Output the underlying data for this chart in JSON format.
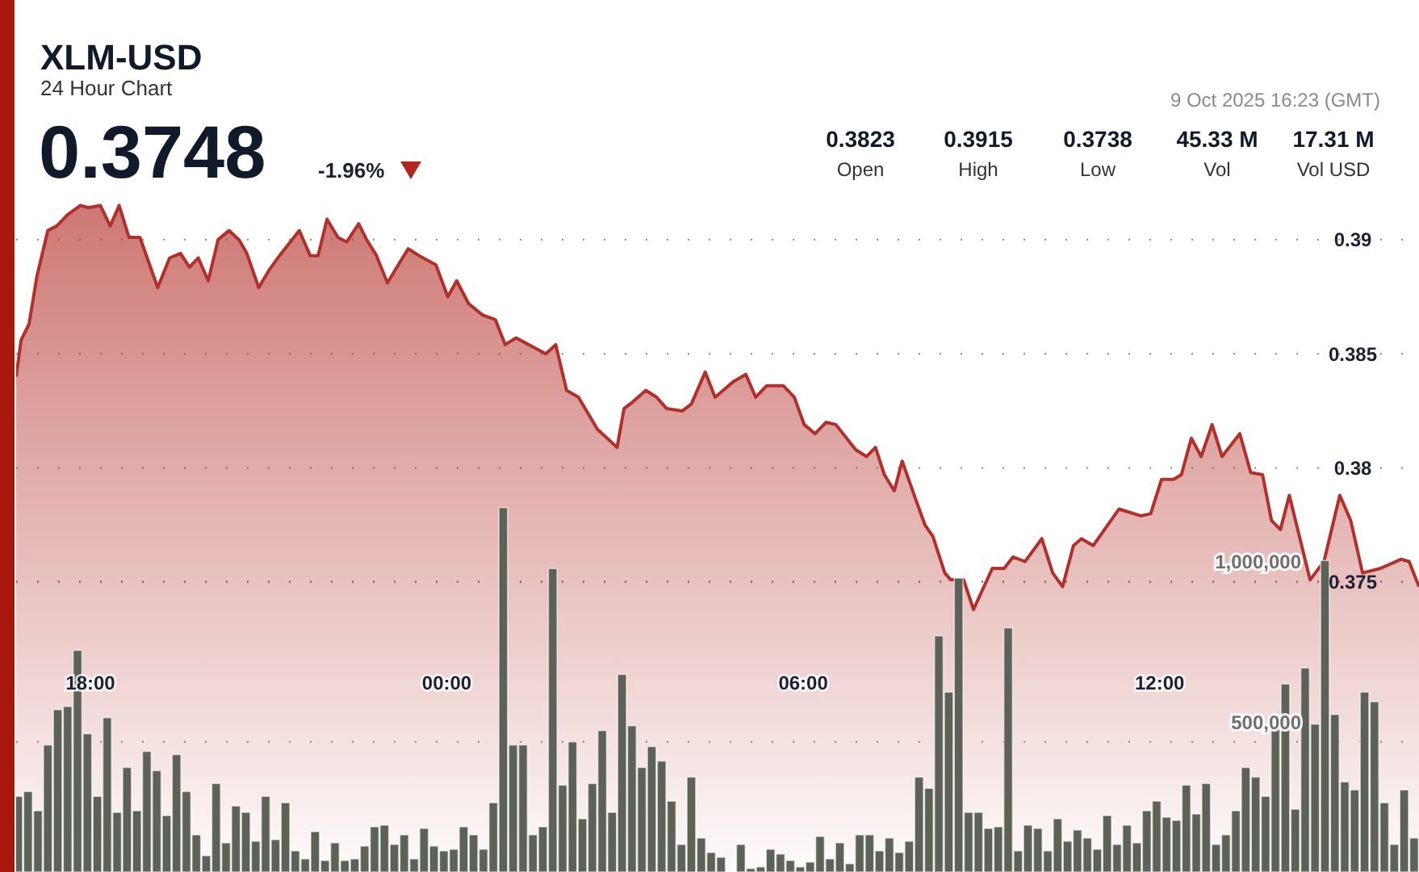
{
  "chart_data": {
    "type": "area",
    "title": "XLM-USD",
    "subtitle": "24 Hour Chart",
    "annotations": [
      "0.3748",
      "-1.96%",
      "9 Oct 2025 16:23 (GMT)",
      "0.3823",
      "Open",
      "0.3915",
      "High",
      "0.3738",
      "Low",
      "45.33 M",
      "Vol",
      "17.31 M",
      "Vol USD"
    ],
    "xlim": [
      "2025-10-08T16:45",
      "2025-10-09T16:22"
    ],
    "xticks": [
      {
        "value": "2025-10-08T18:00",
        "label": "18:00"
      },
      {
        "value": "2025-10-09T00:00",
        "label": "00:00"
      },
      {
        "value": "2025-10-09T06:00",
        "label": "06:00"
      },
      {
        "value": "2025-10-09T12:00",
        "label": "12:00"
      }
    ],
    "ylim": [
      0.3623,
      0.4005
    ],
    "yticks": [
      0.375,
      0.38,
      0.385,
      0.39
    ],
    "y2lim": [
      94000,
      2812000
    ],
    "y2ticks": [
      {
        "value": 500000,
        "label": "500,000"
      },
      {
        "value": 1000000,
        "label": "1,000,000"
      }
    ],
    "grid": "y",
    "series": [
      {
        "color": "#b3302a",
        "x": [
          "2025-10-08T16:45",
          "2025-10-08T16:50",
          "2025-10-08T16:58",
          "2025-10-08T17:06",
          "2025-10-08T17:17",
          "2025-10-08T17:26",
          "2025-10-08T17:37",
          "2025-10-08T17:50",
          "2025-10-08T17:58",
          "2025-10-08T18:10",
          "2025-10-08T18:20",
          "2025-10-08T18:29",
          "2025-10-08T18:39",
          "2025-10-08T18:50",
          "2025-10-08T19:08",
          "2025-10-08T19:20",
          "2025-10-08T19:31",
          "2025-10-08T19:40",
          "2025-10-08T19:49",
          "2025-10-08T19:59",
          "2025-10-08T20:09",
          "2025-10-08T20:20",
          "2025-10-08T20:30",
          "2025-10-08T20:38",
          "2025-10-08T20:50",
          "2025-10-08T21:01",
          "2025-10-08T21:11",
          "2025-10-08T21:31",
          "2025-10-08T21:42",
          "2025-10-08T21:50",
          "2025-10-08T21:59",
          "2025-10-08T22:10",
          "2025-10-08T22:19",
          "2025-10-08T22:31",
          "2025-10-08T22:39",
          "2025-10-08T22:49",
          "2025-10-08T23:00",
          "2025-10-08T23:11",
          "2025-10-08T23:21",
          "2025-10-08T23:32",
          "2025-10-08T23:49",
          "2025-10-09T00:01",
          "2025-10-09T00:10",
          "2025-10-09T00:22",
          "2025-10-09T00:36",
          "2025-10-09T00:49",
          "2025-10-09T00:59",
          "2025-10-09T01:10",
          "2025-10-09T01:40",
          "2025-10-09T01:50",
          "2025-10-09T02:01",
          "2025-10-09T02:13",
          "2025-10-09T02:32",
          "2025-10-09T02:52",
          "2025-10-09T02:59",
          "2025-10-09T03:08",
          "2025-10-09T03:21",
          "2025-10-09T03:32",
          "2025-10-09T03:42",
          "2025-10-09T03:58",
          "2025-10-09T04:07",
          "2025-10-09T04:21",
          "2025-10-09T04:31",
          "2025-10-09T04:50",
          "2025-10-09T05:02",
          "2025-10-09T05:12",
          "2025-10-09T05:23",
          "2025-10-09T05:40",
          "2025-10-09T05:51",
          "2025-10-09T06:01",
          "2025-10-09T06:12",
          "2025-10-09T06:23",
          "2025-10-09T06:33",
          "2025-10-09T06:53",
          "2025-10-09T07:04",
          "2025-10-09T07:13",
          "2025-10-09T07:22",
          "2025-10-09T07:32",
          "2025-10-09T07:40",
          "2025-10-09T07:53",
          "2025-10-09T08:03",
          "2025-10-09T08:11",
          "2025-10-09T08:23",
          "2025-10-09T08:29",
          "2025-10-09T08:42",
          "2025-10-09T08:52",
          "2025-10-09T09:11",
          "2025-10-09T09:23",
          "2025-10-09T09:32",
          "2025-10-09T09:44",
          "2025-10-09T10:01",
          "2025-10-09T10:12",
          "2025-10-09T10:22",
          "2025-10-09T10:33",
          "2025-10-09T10:41",
          "2025-10-09T10:53",
          "2025-10-09T11:19",
          "2025-10-09T11:41",
          "2025-10-09T11:51",
          "2025-10-09T12:02",
          "2025-10-09T12:14",
          "2025-10-09T12:22",
          "2025-10-09T12:32",
          "2025-10-09T12:42",
          "2025-10-09T12:53",
          "2025-10-09T13:03",
          "2025-10-09T13:21",
          "2025-10-09T13:32",
          "2025-10-09T13:44",
          "2025-10-09T13:53",
          "2025-10-09T14:02",
          "2025-10-09T14:11",
          "2025-10-09T14:32",
          "2025-10-09T14:46",
          "2025-10-09T15:02",
          "2025-10-09T15:13",
          "2025-10-09T15:25",
          "2025-10-09T15:43",
          "2025-10-09T16:04",
          "2025-10-09T16:12",
          "2025-10-09T16:22"
        ],
        "values": [
          0.384,
          0.3856,
          0.3863,
          0.3884,
          0.3904,
          0.3906,
          0.3911,
          0.3915,
          0.3914,
          0.3915,
          0.3906,
          0.3915,
          0.3901,
          0.3901,
          0.3879,
          0.3892,
          0.3894,
          0.3888,
          0.3892,
          0.3882,
          0.39,
          0.3904,
          0.39,
          0.3894,
          0.3879,
          0.3887,
          0.3893,
          0.3904,
          0.3893,
          0.3893,
          0.3909,
          0.3901,
          0.3899,
          0.3907,
          0.39,
          0.3893,
          0.3881,
          0.3889,
          0.3896,
          0.3893,
          0.3889,
          0.3875,
          0.3882,
          0.3872,
          0.3867,
          0.3865,
          0.3854,
          0.3857,
          0.385,
          0.3854,
          0.3834,
          0.3831,
          0.3817,
          0.3809,
          0.3826,
          0.3829,
          0.3834,
          0.3831,
          0.3826,
          0.3825,
          0.3828,
          0.3842,
          0.3831,
          0.3838,
          0.3841,
          0.3831,
          0.3836,
          0.3836,
          0.3831,
          0.3819,
          0.3815,
          0.382,
          0.3819,
          0.3808,
          0.3805,
          0.3809,
          0.3797,
          0.379,
          0.3803,
          0.3787,
          0.3775,
          0.377,
          0.3754,
          0.3751,
          0.3751,
          0.3738,
          0.3756,
          0.3756,
          0.3761,
          0.3759,
          0.3769,
          0.3754,
          0.3748,
          0.3766,
          0.3769,
          0.3766,
          0.3782,
          0.3779,
          0.378,
          0.3795,
          0.3795,
          0.3797,
          0.3813,
          0.3805,
          0.3819,
          0.3805,
          0.3815,
          0.3798,
          0.3797,
          0.3777,
          0.3773,
          0.3788,
          0.3751,
          0.3759,
          0.3788,
          0.3777,
          0.3754,
          0.3756,
          0.376,
          0.3759,
          0.3748
        ]
      },
      {
        "type": "bar",
        "axis": "y2",
        "color": "#5d6259",
        "x": [
          "2025-10-08T16:47",
          "2025-10-08T16:57",
          "2025-10-08T17:07",
          "2025-10-08T17:17",
          "2025-10-08T17:27",
          "2025-10-08T17:37",
          "2025-10-08T17:47",
          "2025-10-08T17:57",
          "2025-10-08T18:07",
          "2025-10-08T18:17",
          "2025-10-08T18:27",
          "2025-10-08T18:37",
          "2025-10-08T18:47",
          "2025-10-08T18:57",
          "2025-10-08T19:07",
          "2025-10-08T19:17",
          "2025-10-08T19:27",
          "2025-10-08T19:37",
          "2025-10-08T19:47",
          "2025-10-08T19:57",
          "2025-10-08T20:07",
          "2025-10-08T20:17",
          "2025-10-08T20:27",
          "2025-10-08T20:37",
          "2025-10-08T20:47",
          "2025-10-08T20:57",
          "2025-10-08T21:07",
          "2025-10-08T21:17",
          "2025-10-08T21:27",
          "2025-10-08T21:37",
          "2025-10-08T21:47",
          "2025-10-08T21:57",
          "2025-10-08T22:07",
          "2025-10-08T22:17",
          "2025-10-08T22:27",
          "2025-10-08T22:37",
          "2025-10-08T22:47",
          "2025-10-08T22:57",
          "2025-10-08T23:07",
          "2025-10-08T23:17",
          "2025-10-08T23:27",
          "2025-10-08T23:37",
          "2025-10-08T23:47",
          "2025-10-08T23:57",
          "2025-10-09T00:07",
          "2025-10-09T00:17",
          "2025-10-09T00:27",
          "2025-10-09T00:37",
          "2025-10-09T00:47",
          "2025-10-09T00:57",
          "2025-10-09T01:07",
          "2025-10-09T01:17",
          "2025-10-09T01:27",
          "2025-10-09T01:37",
          "2025-10-09T01:47",
          "2025-10-09T01:57",
          "2025-10-09T02:07",
          "2025-10-09T02:17",
          "2025-10-09T02:27",
          "2025-10-09T02:37",
          "2025-10-09T02:47",
          "2025-10-09T02:57",
          "2025-10-09T03:07",
          "2025-10-09T03:17",
          "2025-10-09T03:27",
          "2025-10-09T03:37",
          "2025-10-09T03:47",
          "2025-10-09T03:57",
          "2025-10-09T04:07",
          "2025-10-09T04:17",
          "2025-10-09T04:27",
          "2025-10-09T04:37",
          "2025-10-09T04:57",
          "2025-10-09T05:07",
          "2025-10-09T05:17",
          "2025-10-09T05:27",
          "2025-10-09T05:37",
          "2025-10-09T05:47",
          "2025-10-09T05:57",
          "2025-10-09T06:07",
          "2025-10-09T06:17",
          "2025-10-09T06:27",
          "2025-10-09T06:37",
          "2025-10-09T06:47",
          "2025-10-09T06:57",
          "2025-10-09T07:07",
          "2025-10-09T07:17",
          "2025-10-09T07:27",
          "2025-10-09T07:37",
          "2025-10-09T07:47",
          "2025-10-09T07:57",
          "2025-10-09T08:07",
          "2025-10-09T08:17",
          "2025-10-09T08:27",
          "2025-10-09T08:37",
          "2025-10-09T08:47",
          "2025-10-09T08:57",
          "2025-10-09T09:07",
          "2025-10-09T09:17",
          "2025-10-09T09:27",
          "2025-10-09T09:37",
          "2025-10-09T09:47",
          "2025-10-09T09:57",
          "2025-10-09T10:07",
          "2025-10-09T10:17",
          "2025-10-09T10:27",
          "2025-10-09T10:37",
          "2025-10-09T10:47",
          "2025-10-09T10:57",
          "2025-10-09T11:07",
          "2025-10-09T11:17",
          "2025-10-09T11:27",
          "2025-10-09T11:37",
          "2025-10-09T11:47",
          "2025-10-09T11:57",
          "2025-10-09T12:07",
          "2025-10-09T12:17",
          "2025-10-09T12:27",
          "2025-10-09T12:37",
          "2025-10-09T12:47",
          "2025-10-09T12:57",
          "2025-10-09T13:07",
          "2025-10-09T13:17",
          "2025-10-09T13:27",
          "2025-10-09T13:37",
          "2025-10-09T13:47",
          "2025-10-09T13:57",
          "2025-10-09T14:07",
          "2025-10-09T14:17",
          "2025-10-09T14:27",
          "2025-10-09T14:37",
          "2025-10-09T14:47",
          "2025-10-09T14:57",
          "2025-10-09T15:07",
          "2025-10-09T15:17",
          "2025-10-09T15:27",
          "2025-10-09T15:37",
          "2025-10-09T15:47",
          "2025-10-09T15:57",
          "2025-10-09T16:07",
          "2025-10-09T16:17"
        ],
        "values": [
          330000,
          345000,
          285000,
          490000,
          600000,
          610000,
          785000,
          525000,
          330000,
          575000,
          280000,
          420000,
          285000,
          470000,
          410000,
          270000,
          460000,
          345000,
          210000,
          145000,
          370000,
          185000,
          300000,
          280000,
          190000,
          330000,
          195000,
          310000,
          160000,
          135000,
          220000,
          130000,
          185000,
          130000,
          135000,
          175000,
          235000,
          240000,
          180000,
          210000,
          135000,
          230000,
          175000,
          160000,
          165000,
          235000,
          210000,
          165000,
          310000,
          1230000,
          490000,
          490000,
          210000,
          235000,
          1040000,
          365000,
          500000,
          260000,
          370000,
          535000,
          280000,
          710000,
          550000,
          420000,
          485000,
          440000,
          315000,
          180000,
          390000,
          200000,
          155000,
          140000,
          180000,
          105000,
          110000,
          165000,
          150000,
          130000,
          110000,
          125000,
          205000,
          135000,
          185000,
          120000,
          210000,
          210000,
          160000,
          200000,
          155000,
          190000,
          390000,
          355000,
          830000,
          655000,
          1010000,
          280000,
          280000,
          230000,
          235000,
          855000,
          160000,
          240000,
          230000,
          160000,
          260000,
          190000,
          225000,
          200000,
          165000,
          270000,
          180000,
          240000,
          185000,
          285000,
          315000,
          265000,
          255000,
          365000,
          275000,
          370000,
          180000,
          210000,
          285000,
          420000,
          390000,
          330000,
          550000,
          680000,
          290000,
          730000,
          555000,
          1065000,
          585000,
          375000,
          350000,
          655000,
          625000,
          310000,
          180000,
          350000,
          200000
        ]
      }
    ]
  }
}
